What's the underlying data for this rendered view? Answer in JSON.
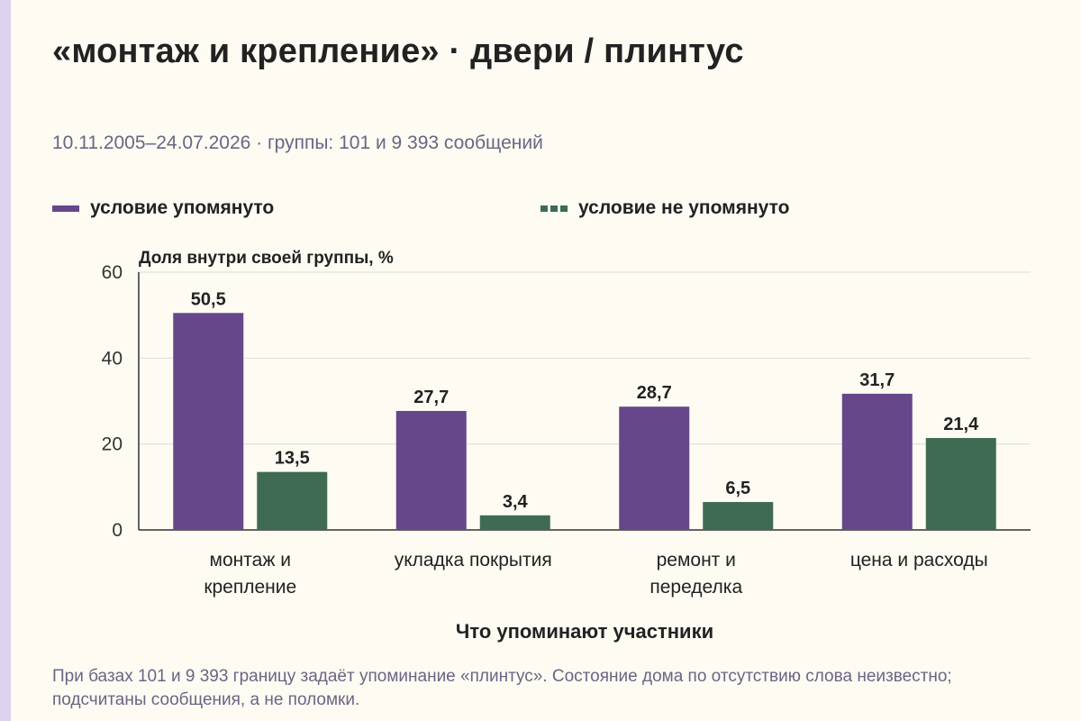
{
  "title": "«монтаж и крепление» · двери / плинтус",
  "subtitle": "10.11.2005–24.07.2026 · группы: 101 и 9 393 сообщений",
  "footnote": "При базах 101 и 9 393 границу задаёт упоминание «плинтус». Состояние дома по отсутствию слова неизвестно; подсчитаны сообщения, а не поломки.",
  "colors": {
    "series_1": "#65478a",
    "series_2": "#3f6b55",
    "accent_bar": "#ddd3ee",
    "grid": "#dcdcdc"
  },
  "chart_data": {
    "type": "bar",
    "title": "«монтаж и крепление» · двери / плинтус",
    "ylabel": "Доля внутри своей группы, %",
    "xlabel": "Что упоминают участники",
    "ylim": [
      0,
      60
    ],
    "yticks": [
      0,
      20,
      40,
      60
    ],
    "grid": true,
    "legend_position": "top",
    "categories": [
      [
        "монтаж и",
        "крепление"
      ],
      [
        "укладка покрытия"
      ],
      [
        "ремонт и",
        "переделка"
      ],
      [
        "цена и расходы"
      ]
    ],
    "series": [
      {
        "name": "условие упомянуто",
        "values": [
          50.5,
          27.7,
          28.7,
          31.7
        ],
        "labels": [
          "50,5",
          "27,7",
          "28,7",
          "31,7"
        ]
      },
      {
        "name": "условие не упомянуто",
        "values": [
          13.5,
          3.4,
          6.5,
          21.4
        ],
        "labels": [
          "13,5",
          "3,4",
          "6,5",
          "21,4"
        ]
      }
    ]
  }
}
